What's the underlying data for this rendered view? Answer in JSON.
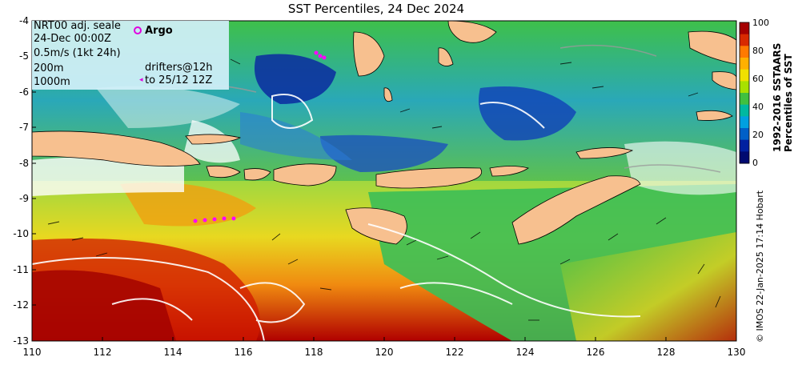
{
  "title": "SST Percentiles, 24 Dec 2024",
  "map": {
    "lon_range": [
      110,
      130
    ],
    "lat_range": [
      -13,
      -4
    ],
    "x_ticks": [
      "110",
      "112",
      "114",
      "116",
      "118",
      "120",
      "122",
      "124",
      "126",
      "128",
      "130"
    ],
    "y_ticks": [
      "-4",
      "-5",
      "-6",
      "-7",
      "-8",
      "-9",
      "-10",
      "-11",
      "-12",
      "-13"
    ],
    "land_color": "#f7c08f",
    "region": "Lesser Sunda Islands / Flores Sea / Timor Sea"
  },
  "legend": {
    "line1": "NRT00 adj. seale",
    "line2": "24-Dec 00:00Z",
    "line3": "0.5m/s (1kt 24h)",
    "line4": "200m",
    "line5": "1000m",
    "argo_label": "Argo",
    "drifters_line1": "drifters@12h",
    "drifters_line2": "to 25/12 12Z"
  },
  "colorbar": {
    "ticks": [
      "100",
      "80",
      "60",
      "40",
      "20",
      "0"
    ],
    "colors": [
      "#a50000",
      "#d82a00",
      "#ff7a00",
      "#ffb000",
      "#f0e000",
      "#a8e000",
      "#40c040",
      "#00b8a0",
      "#00a0e0",
      "#0060c8",
      "#0020a0",
      "#000a70"
    ],
    "label_line1": "1992-2016 SSTAARS",
    "label_line2": "Percentiles of SST"
  },
  "credit": "© IMOS 22-Jan-2025 17:14 Hobart"
}
